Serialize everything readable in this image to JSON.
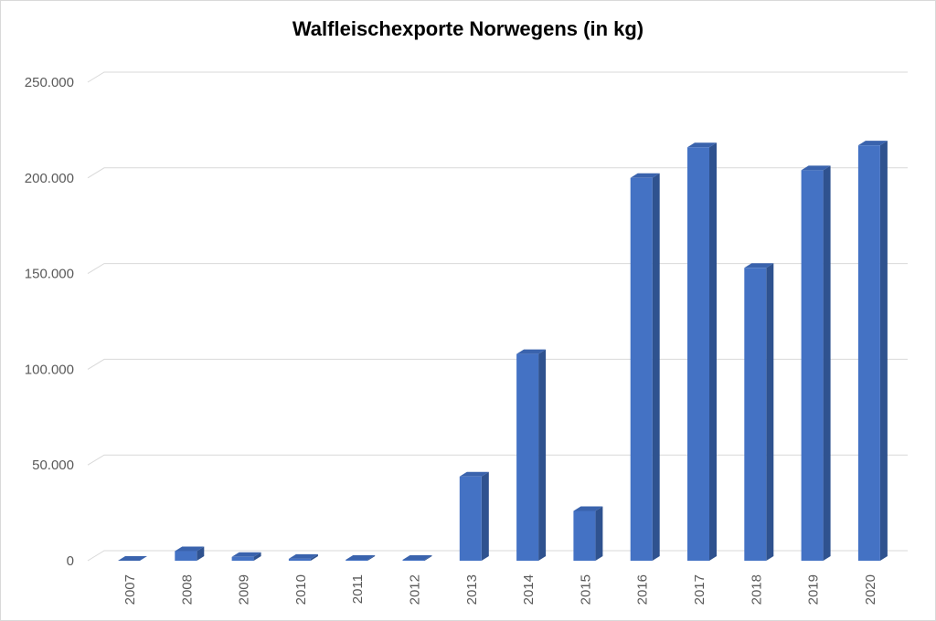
{
  "chart_data": {
    "type": "bar",
    "title": "Walfleischexporte Norwegens (in kg)",
    "xlabel": "",
    "ylabel": "",
    "categories": [
      "2007",
      "2008",
      "2009",
      "2010",
      "2011",
      "2012",
      "2013",
      "2014",
      "2015",
      "2016",
      "2017",
      "2018",
      "2019",
      "2020"
    ],
    "values": [
      0,
      5000,
      2000,
      1000,
      500,
      500,
      44000,
      108000,
      26000,
      200000,
      216000,
      153000,
      204000,
      217000
    ],
    "ylim": [
      0,
      250000
    ],
    "yticks": [
      0,
      50000,
      100000,
      150000,
      200000,
      250000
    ],
    "ytick_labels": [
      "0",
      "50.000",
      "100.000",
      "150.000",
      "200.000",
      "250.000"
    ],
    "grid": true,
    "legend": "none",
    "colors": {
      "bar_front": "#4472c4",
      "bar_side": "#2f528f",
      "bar_top": "#3a63ad",
      "grid": "#d9d9d9"
    }
  }
}
